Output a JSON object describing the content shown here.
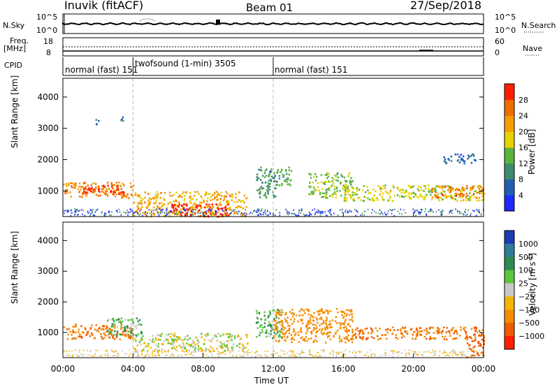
{
  "header": {
    "station": "Inuvik (fitACF)",
    "beam": "Beam 01",
    "date": "27/Sep/2018"
  },
  "sky_panel": {
    "left_label": "N.Sky",
    "right_label": "N.Search",
    "left_ticks": [
      "10^5",
      "10^0"
    ],
    "right_ticks": [
      "10^5",
      "10^0"
    ]
  },
  "freq_panel": {
    "left_label_1": "Freq.",
    "left_label_2": "[MHz]",
    "right_label": "Nave",
    "left_ticks": [
      "18",
      "8"
    ],
    "right_ticks": [
      "60",
      "0"
    ]
  },
  "cpid": {
    "label": "CPID",
    "segments": [
      {
        "name": "normal (fast)",
        "id": "151",
        "start_hour": 0,
        "end_hour": 4
      },
      {
        "name": "twofsound (1-min)",
        "id": "3505",
        "start_hour": 4,
        "end_hour": 12
      },
      {
        "name": "normal (fast)",
        "id": "151",
        "start_hour": 12,
        "end_hour": 24
      }
    ]
  },
  "axes": {
    "xlabel": "Time UT",
    "x_ticks": [
      "00:00",
      "04:00",
      "08:00",
      "12:00",
      "16:00",
      "20:00",
      "00:00"
    ],
    "ylabel": "Slant Range [km]",
    "y_ticks": [
      "1000",
      "2000",
      "3000",
      "4000"
    ]
  },
  "colorbars": {
    "power": {
      "label": "Power [dB]",
      "ticks": [
        "4",
        "8",
        "12",
        "16",
        "20",
        "24",
        "28"
      ],
      "colors": [
        "#1e28ff",
        "#1e5fb4",
        "#3c8c6e",
        "#5ab43c",
        "#e6d200",
        "#f5a000",
        "#f06e00",
        "#ff1e00"
      ]
    },
    "velocity": {
      "label": "Velocity [m s",
      "label_sup": "-1",
      "label_end": "]",
      "ticks": [
        "1000",
        "500",
        "100",
        "25",
        "−25",
        "−100",
        "−500",
        "−1000"
      ],
      "colors": [
        "#1e3cb4",
        "#2e7e9a",
        "#2e8c50",
        "#5ac83c",
        "#c8c8c8",
        "#f5b400",
        "#f58c00",
        "#f05a00",
        "#ff1e00"
      ]
    }
  },
  "chart_data": [
    {
      "type": "heatmap",
      "title": "Power",
      "xlabel": "Time UT",
      "ylabel": "Slant Range [km]",
      "xlim": [
        0,
        24
      ],
      "ylim": [
        180,
        4600
      ],
      "colorbar": {
        "label": "Power [dB]",
        "range": [
          0,
          30
        ]
      },
      "regions": [
        {
          "t0": 0.0,
          "t1": 4.0,
          "r0": 800,
          "r1": 1300,
          "value": 22
        },
        {
          "t0": 1.0,
          "t1": 3.5,
          "r0": 900,
          "r1": 1200,
          "value": 28
        },
        {
          "t0": 4.0,
          "t1": 10.5,
          "r0": 200,
          "r1": 1000,
          "value": 20
        },
        {
          "t0": 6.0,
          "t1": 9.5,
          "r0": 200,
          "r1": 600,
          "value": 30
        },
        {
          "t0": 11.0,
          "t1": 12.2,
          "r0": 800,
          "r1": 1800,
          "value": 10
        },
        {
          "t0": 12.0,
          "t1": 13.0,
          "r0": 1200,
          "r1": 1800,
          "value": 12
        },
        {
          "t0": 14.0,
          "t1": 16.5,
          "r0": 800,
          "r1": 1600,
          "value": 14
        },
        {
          "t0": 16.0,
          "t1": 24.0,
          "r0": 700,
          "r1": 1200,
          "value": 16
        },
        {
          "t0": 21.0,
          "t1": 24.0,
          "r0": 800,
          "r1": 1200,
          "value": 24
        },
        {
          "t0": 1.8,
          "t1": 2.0,
          "r0": 3100,
          "r1": 3400,
          "value": 8
        },
        {
          "t0": 3.2,
          "t1": 3.4,
          "r0": 3200,
          "r1": 3400,
          "value": 8
        },
        {
          "t0": 21.5,
          "t1": 23.5,
          "r0": 1900,
          "r1": 2200,
          "value": 6
        }
      ]
    },
    {
      "type": "heatmap",
      "title": "Velocity",
      "xlabel": "Time UT",
      "ylabel": "Slant Range [km]",
      "xlim": [
        0,
        24
      ],
      "ylim": [
        180,
        4600
      ],
      "colorbar": {
        "label": "Velocity [m s-1]",
        "range": [
          -1000,
          1000
        ]
      },
      "regions": [
        {
          "t0": 0.0,
          "t1": 4.0,
          "r0": 800,
          "r1": 1300,
          "value": -500
        },
        {
          "t0": 2.5,
          "t1": 4.5,
          "r0": 900,
          "r1": 1500,
          "value": 100
        },
        {
          "t0": 4.0,
          "t1": 10.5,
          "r0": 400,
          "r1": 1000,
          "value": 0
        },
        {
          "t0": 11.0,
          "t1": 12.5,
          "r0": 800,
          "r1": 1800,
          "value": 100
        },
        {
          "t0": 12.0,
          "t1": 16.5,
          "r0": 700,
          "r1": 1800,
          "value": -300
        },
        {
          "t0": 16.0,
          "t1": 24.0,
          "r0": 800,
          "r1": 1200,
          "value": -500
        },
        {
          "t0": 23.0,
          "t1": 24.0,
          "r0": 200,
          "r1": 1000,
          "value": -700
        }
      ]
    }
  ]
}
